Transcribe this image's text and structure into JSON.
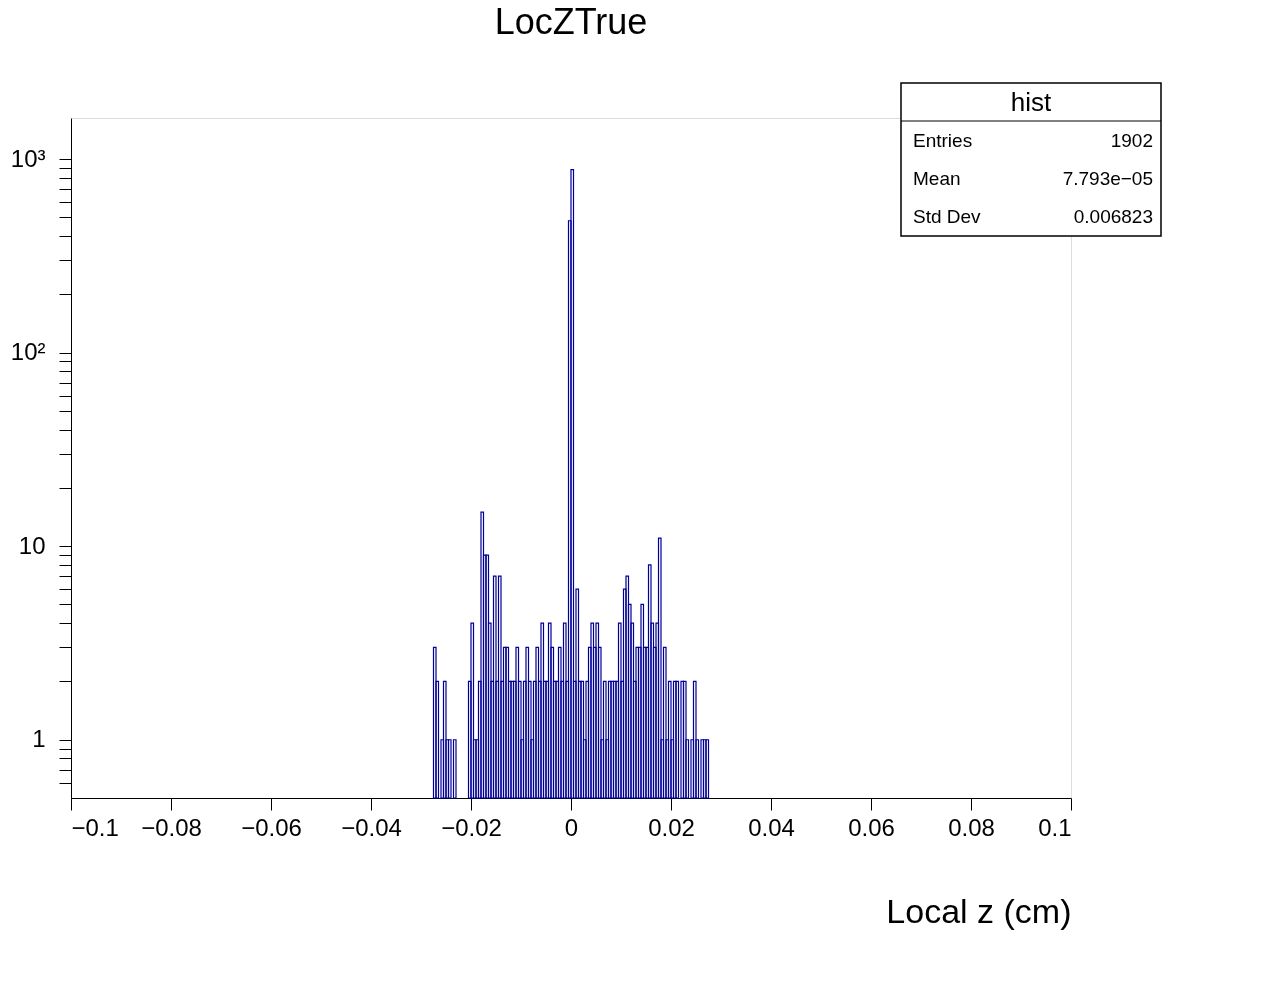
{
  "chart_data": {
    "type": "histogram",
    "title": "LocZTrue",
    "xlabel": "Local z (cm)",
    "annotations": [
      "hist",
      "Entries",
      "1902",
      "Mean",
      "7.793e−05",
      "Std Dev",
      "0.006823"
    ],
    "color": "#000099",
    "log": "y",
    "grid": false,
    "bins": [
      -0.0275,
      -0.027,
      -0.0265,
      -0.026,
      -0.0255,
      -0.025,
      -0.0245,
      -0.024,
      -0.0235,
      -0.023,
      -0.0225,
      -0.022,
      -0.0215,
      -0.021,
      -0.0205,
      -0.02,
      -0.0195,
      -0.019,
      -0.0185,
      -0.018,
      -0.0175,
      -0.017,
      -0.0165,
      -0.016,
      -0.0155,
      -0.015,
      -0.0145,
      -0.014,
      -0.0135,
      -0.013,
      -0.0125,
      -0.012,
      -0.0115,
      -0.011,
      -0.0105,
      -0.01,
      -0.0095,
      -0.009,
      -0.0085,
      -0.008,
      -0.0075,
      -0.007,
      -0.0065,
      -0.006,
      -0.0055,
      -0.005,
      -0.0045,
      -0.004,
      -0.0035,
      -0.003,
      -0.0025,
      -0.002,
      -0.0015,
      -0.001,
      -0.0005,
      0,
      0.0005,
      0.001,
      0.0015,
      0.002,
      0.0025,
      0.003,
      0.0035,
      0.004,
      0.0045,
      0.005,
      0.0055,
      0.006,
      0.0065,
      0.007,
      0.0075,
      0.008,
      0.0085,
      0.009,
      0.0095,
      0.01,
      0.0105,
      0.011,
      0.0115,
      0.012,
      0.0125,
      0.013,
      0.0135,
      0.014,
      0.0145,
      0.015,
      0.0155,
      0.016,
      0.0165,
      0.017,
      0.0175,
      0.018,
      0.0185,
      0.019,
      0.0195,
      0.02,
      0.0205,
      0.021,
      0.0215,
      0.022,
      0.0225,
      0.023,
      0.0235,
      0.024,
      0.0245,
      0.025,
      0.0255,
      0.026,
      0.0265,
      0.027,
      0.0275
    ],
    "values": [
      3,
      2,
      null,
      1,
      2,
      1,
      1,
      null,
      1,
      null,
      null,
      null,
      null,
      null,
      2,
      4,
      1,
      1,
      2,
      15,
      9,
      9,
      4,
      2,
      7,
      2,
      7,
      2,
      3,
      3,
      2,
      2,
      2,
      3,
      2,
      1,
      2,
      3,
      2,
      1,
      2,
      3,
      2,
      4,
      2,
      2,
      4,
      3,
      2,
      2,
      3,
      2,
      4,
      2,
      480,
      881,
      2,
      6,
      2,
      2,
      1,
      2,
      3,
      4,
      3,
      4,
      3,
      1,
      2,
      1,
      2,
      2,
      2,
      2,
      4,
      2,
      6,
      7,
      5,
      4,
      2,
      3,
      3,
      5,
      3,
      3,
      8,
      4,
      3,
      4,
      11,
      1,
      3,
      1,
      2,
      1,
      2,
      2,
      null,
      2,
      2,
      1,
      null,
      1,
      2,
      1,
      null,
      1,
      1,
      1
    ],
    "xlim": [
      -0.1,
      0.1
    ],
    "xticks": [
      -0.1,
      -0.08,
      -0.06,
      -0.04,
      -0.02,
      0,
      0.02,
      0.04,
      0.06,
      0.08,
      0.1
    ],
    "ylim": [
      0.5,
      1630
    ],
    "yticks": [
      {
        "value": 0.6,
        "label": null
      },
      {
        "value": 0.7,
        "label": null
      },
      {
        "value": 0.8,
        "label": null
      },
      {
        "value": 0.9,
        "label": null
      },
      1,
      {
        "value": 2,
        "label": null
      },
      {
        "value": 3,
        "label": null
      },
      {
        "value": 4,
        "label": null
      },
      {
        "value": 5,
        "label": null
      },
      {
        "value": 6,
        "label": null
      },
      {
        "value": 7,
        "label": null
      },
      {
        "value": 8,
        "label": null
      },
      {
        "value": 9,
        "label": null
      },
      10,
      {
        "value": 20,
        "label": null
      },
      {
        "value": 30,
        "label": null
      },
      {
        "value": 40,
        "label": null
      },
      {
        "value": 50,
        "label": null
      },
      {
        "value": 60,
        "label": null
      },
      {
        "value": 70,
        "label": null
      },
      {
        "value": 80,
        "label": null
      },
      {
        "value": 90,
        "label": null
      },
      {
        "value": 100,
        "label": "10²"
      },
      {
        "value": 200,
        "label": null
      },
      {
        "value": 300,
        "label": null
      },
      {
        "value": 400,
        "label": null
      },
      {
        "value": 500,
        "label": null
      },
      {
        "value": 600,
        "label": null
      },
      {
        "value": 700,
        "label": null
      },
      {
        "value": 800,
        "label": null
      },
      {
        "value": 900,
        "label": null
      },
      {
        "value": 1000,
        "label": "10³"
      }
    ]
  }
}
